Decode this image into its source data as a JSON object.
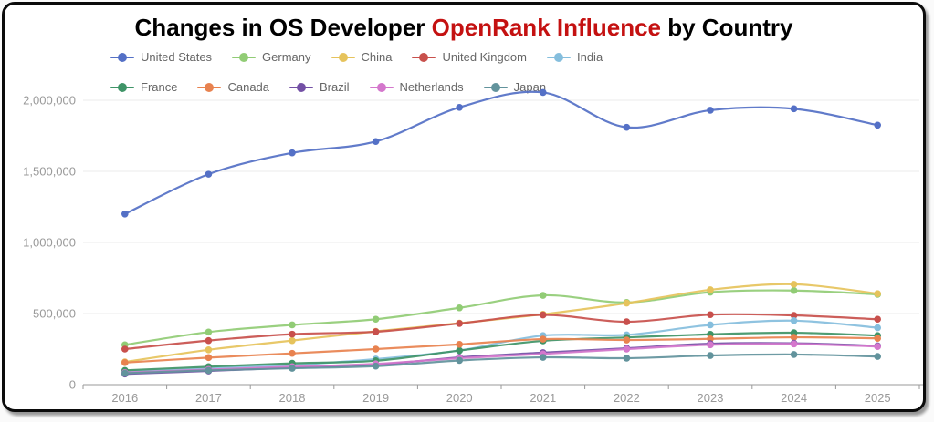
{
  "title": {
    "prefix": "Changes in OS Developer ",
    "highlight": "OpenRank Influence",
    "suffix": " by Country",
    "highlight_color": "#c41111",
    "text_color": "#000000"
  },
  "chart_data": {
    "type": "line",
    "smooth": true,
    "title": "Changes in OS Developer OpenRank Influence by Country",
    "xlabel": "",
    "ylabel": "",
    "x": [
      "2016",
      "2017",
      "2018",
      "2019",
      "2020",
      "2021",
      "2022",
      "2023",
      "2024",
      "2025"
    ],
    "ylim": [
      0,
      2000000
    ],
    "y_ticks": [
      0,
      500000,
      1000000,
      1500000,
      2000000
    ],
    "y_tick_labels": [
      "0",
      "500,000",
      "1,000,000",
      "1,500,000",
      "2,000,000"
    ],
    "grid": true,
    "legend_position": "top-left",
    "legend_row_break": 5,
    "series": [
      {
        "name": "United States",
        "color": "#5470c6",
        "values": [
          1200000,
          1480000,
          1630000,
          1710000,
          1950000,
          2055000,
          1810000,
          1930000,
          1940000,
          1825000
        ]
      },
      {
        "name": "Germany",
        "color": "#91cc75",
        "values": [
          280000,
          370000,
          420000,
          460000,
          540000,
          628000,
          578000,
          650000,
          662000,
          635000
        ]
      },
      {
        "name": "China",
        "color": "#e6c35c",
        "values": [
          160000,
          245000,
          310000,
          375000,
          432000,
          495000,
          573000,
          667000,
          706000,
          640000
        ]
      },
      {
        "name": "United Kingdom",
        "color": "#c8504c",
        "values": [
          250000,
          310000,
          355000,
          372000,
          430000,
          490000,
          442000,
          492000,
          487000,
          460000
        ]
      },
      {
        "name": "India",
        "color": "#85bedd",
        "values": [
          90000,
          115000,
          138000,
          180000,
          240000,
          345000,
          350000,
          420000,
          450000,
          400000
        ]
      },
      {
        "name": "France",
        "color": "#3f9467",
        "values": [
          100000,
          126000,
          150000,
          168000,
          240000,
          308000,
          332000,
          354000,
          365000,
          345000
        ]
      },
      {
        "name": "Canada",
        "color": "#e8824f",
        "values": [
          155000,
          190000,
          220000,
          250000,
          283000,
          320000,
          314000,
          322000,
          333000,
          326000
        ]
      },
      {
        "name": "Brazil",
        "color": "#7350a5",
        "values": [
          75000,
          96000,
          120000,
          140000,
          192000,
          225000,
          256000,
          288000,
          291000,
          273000
        ]
      },
      {
        "name": "Netherlands",
        "color": "#d477cc",
        "values": [
          85000,
          106000,
          126000,
          146000,
          186000,
          216000,
          250000,
          280000,
          286000,
          268000
        ]
      },
      {
        "name": "Japan",
        "color": "#62939c",
        "values": [
          80000,
          100000,
          115000,
          130000,
          170000,
          192000,
          186000,
          205000,
          212000,
          198000
        ]
      }
    ],
    "axis_style": {
      "axis_line_color": "#999999",
      "grid_line_color": "#ebebeb",
      "tick_label_color": "#999999",
      "legend_text_color": "#666666"
    }
  }
}
